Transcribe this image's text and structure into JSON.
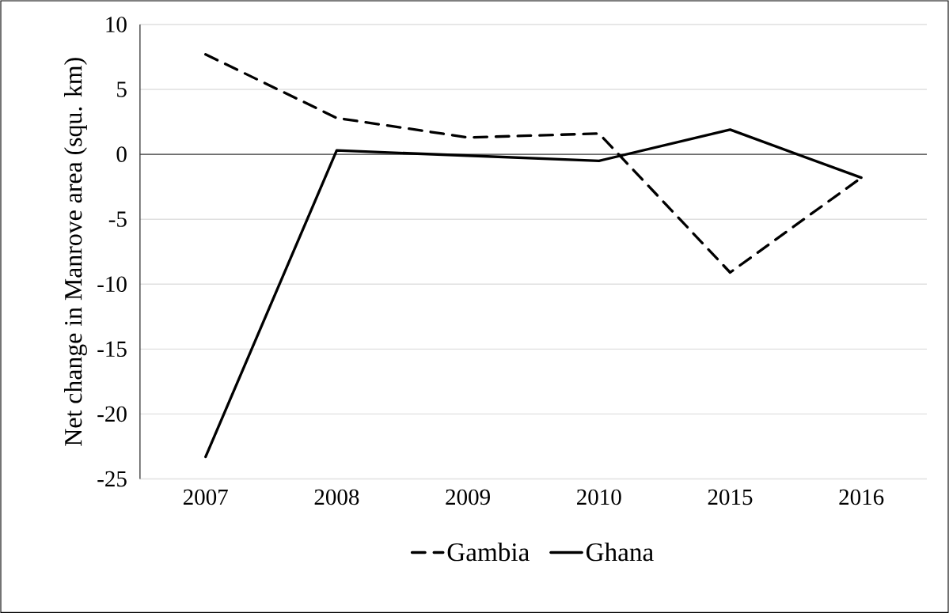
{
  "chart_data": {
    "type": "line",
    "ylabel": "Net change in Manrove area (squ. km)",
    "categories": [
      "2007",
      "2008",
      "2009",
      "2010",
      "2015",
      "2016"
    ],
    "series": [
      {
        "name": "Gambia",
        "color": "#000000",
        "line_style": "dashed",
        "values": [
          7.7,
          2.8,
          1.3,
          1.6,
          -9.1,
          -1.8
        ]
      },
      {
        "name": "Ghana",
        "color": "#000000",
        "line_style": "solid",
        "values": [
          -23.3,
          0.3,
          -0.1,
          -0.5,
          1.9,
          -1.8
        ]
      }
    ],
    "ylim": [
      -25,
      10
    ],
    "yticks": [
      -25,
      -20,
      -15,
      -10,
      -5,
      0,
      5,
      10
    ],
    "grid": "y",
    "legend": "bottom",
    "marker": "none"
  }
}
